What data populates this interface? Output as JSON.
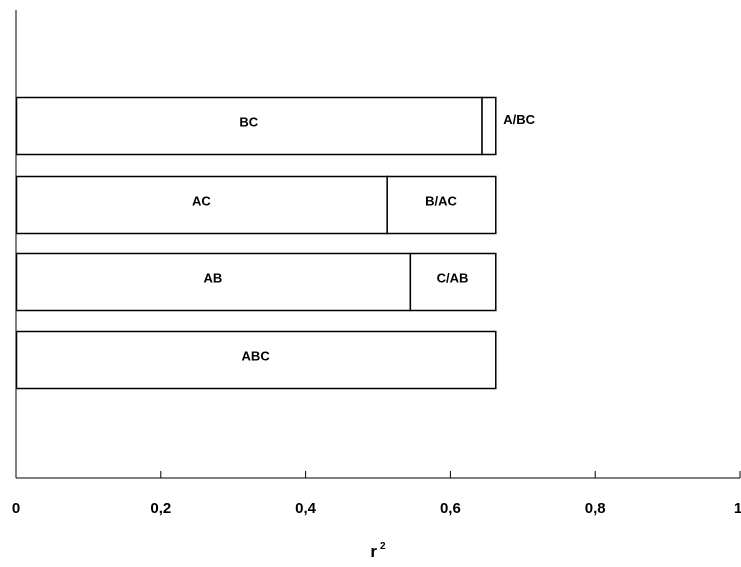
{
  "chart_data": {
    "type": "bar",
    "orientation": "horizontal",
    "stacked": true,
    "title": "",
    "xlabel": "r",
    "xlabel_superscript": "2",
    "ylabel": "",
    "xlim": [
      0,
      1
    ],
    "x_ticks": [
      "0",
      "0,2",
      "0,4",
      "0,6",
      "0,8",
      "1"
    ],
    "x_tick_values": [
      0,
      0.2,
      0.4,
      0.6,
      0.8,
      1
    ],
    "grid": false,
    "legend": "none",
    "bars": [
      {
        "segments": [
          {
            "label": "BC",
            "value": 0.643
          },
          {
            "label": "A/BC",
            "value": 0.019,
            "label_outside": true
          }
        ]
      },
      {
        "segments": [
          {
            "label": "AC",
            "value": 0.512
          },
          {
            "label": "B/AC",
            "value": 0.15
          }
        ]
      },
      {
        "segments": [
          {
            "label": "AB",
            "value": 0.544
          },
          {
            "label": "C/AB",
            "value": 0.118
          }
        ]
      },
      {
        "segments": [
          {
            "label": "ABC",
            "value": 0.662
          }
        ]
      }
    ]
  }
}
